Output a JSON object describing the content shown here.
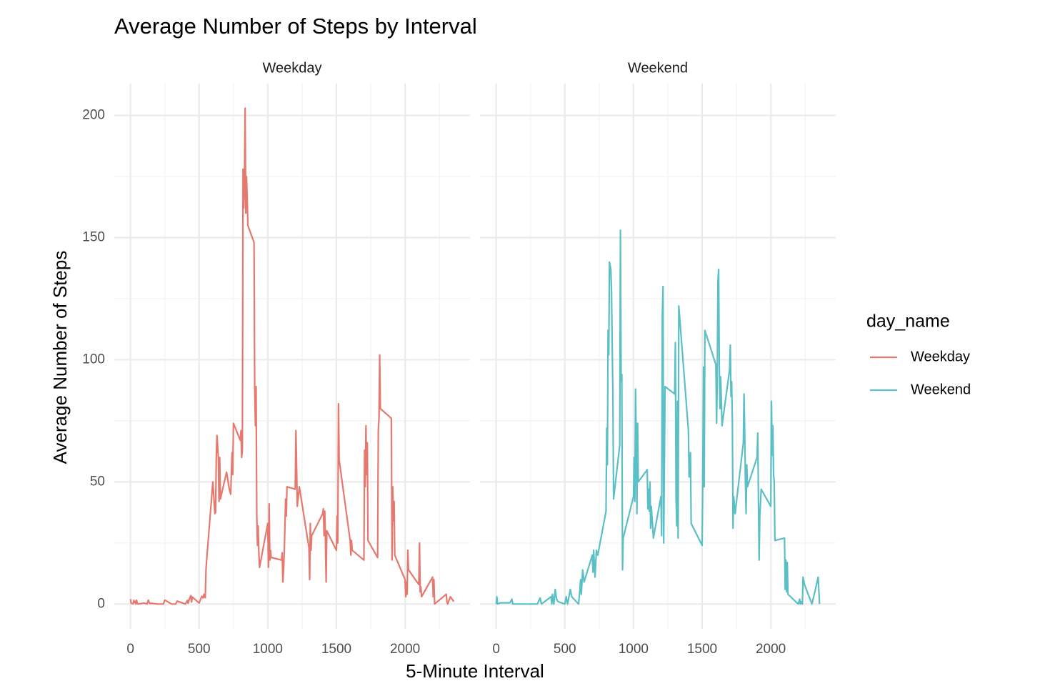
{
  "chart_data": {
    "type": "line",
    "title": "Average Number of Steps by Interval",
    "x_label": "5-Minute Interval",
    "y_label": "Average Number of Steps",
    "legend_title": "day_name",
    "xlim": [
      -117.75,
      2472.75
    ],
    "ylim": [
      -10.15,
      213.15
    ],
    "xticks": [
      0,
      500,
      1000,
      1500,
      2000
    ],
    "yticks": [
      0,
      50,
      100,
      150,
      200
    ],
    "grid": true,
    "series": [
      {
        "name": "Weekday",
        "color": "#e6786e",
        "x": [
          0,
          5,
          10,
          15,
          20,
          25,
          30,
          35,
          40,
          45,
          50,
          55,
          100,
          110,
          120,
          130,
          140,
          150,
          200,
          230,
          240,
          250,
          300,
          330,
          340,
          400,
          415,
          420,
          430,
          440,
          445,
          450,
          500,
          520,
          530,
          535,
          545,
          550,
          555,
          600,
          615,
          620,
          625,
          630,
          640,
          645,
          650,
          655,
          700,
          720,
          730,
          740,
          745,
          750,
          800,
          805,
          810,
          815,
          820,
          825,
          830,
          835,
          840,
          845,
          850,
          855,
          900,
          905,
          910,
          915,
          920,
          925,
          930,
          935,
          940,
          1000,
          1005,
          1010,
          1015,
          1020,
          1025,
          1030,
          1100,
          1105,
          1110,
          1115,
          1120,
          1130,
          1135,
          1140,
          1200,
          1205,
          1210,
          1215,
          1230,
          1300,
          1305,
          1310,
          1315,
          1320,
          1400,
          1405,
          1410,
          1415,
          1420,
          1425,
          1430,
          1500,
          1505,
          1510,
          1515,
          1520,
          1600,
          1605,
          1610,
          1615,
          1700,
          1705,
          1710,
          1715,
          1720,
          1725,
          1730,
          1800,
          1805,
          1810,
          1815,
          1820,
          1900,
          1905,
          1910,
          1915,
          1920,
          1925,
          2000,
          2005,
          2010,
          2015,
          2020,
          2025,
          2100,
          2105,
          2110,
          2115,
          2120,
          2200,
          2205,
          2210,
          2215,
          2300,
          2305,
          2310,
          2330,
          2355
        ],
        "values": [
          2.0,
          0.4,
          0.2,
          0.2,
          0.1,
          1.5,
          0.6,
          1.1,
          0,
          1.6,
          0.3,
          0,
          0.4,
          0.2,
          0,
          1.6,
          0.2,
          0.3,
          0,
          0,
          0,
          1.6,
          0,
          0,
          1.2,
          0,
          1.5,
          0.3,
          2.2,
          3.5,
          0.8,
          2.9,
          0.4,
          3.2,
          2.5,
          4.0,
          2.6,
          14,
          18,
          50,
          37,
          37.5,
          60,
          69,
          60,
          42,
          60,
          43,
          54,
          47,
          45,
          62,
          53,
          74,
          67,
          71,
          60,
          63,
          178,
          162,
          170,
          203,
          160,
          175,
          167,
          155,
          148,
          88,
          73,
          89,
          36,
          24,
          32,
          21,
          15,
          33,
          15,
          41,
          18,
          22,
          19,
          19,
          18,
          21,
          9,
          14,
          21,
          43,
          36,
          48,
          47,
          71,
          56,
          40,
          48,
          23,
          10,
          33,
          22,
          28,
          37,
          39,
          28,
          38,
          26,
          9,
          30,
          22,
          36,
          25,
          82,
          59,
          26,
          20,
          26,
          22,
          18,
          63,
          48,
          73,
          53,
          66,
          26,
          19,
          71,
          76,
          102,
          80,
          76,
          18,
          48,
          34,
          42,
          20,
          10,
          3,
          9,
          4,
          22,
          14,
          8,
          25,
          5,
          7,
          3,
          11,
          3,
          10,
          0,
          4,
          1,
          0,
          3,
          1
        ]
      },
      {
        "name": "Weekend",
        "color": "#5bbfc6",
        "x": [
          0,
          5,
          10,
          30,
          100,
          115,
          120,
          200,
          300,
          320,
          330,
          400,
          405,
          410,
          420,
          430,
          440,
          450,
          500,
          510,
          520,
          540,
          550,
          600,
          610,
          615,
          620,
          630,
          640,
          700,
          705,
          710,
          720,
          730,
          740,
          800,
          805,
          810,
          815,
          820,
          825,
          835,
          840,
          845,
          850,
          855,
          900,
          905,
          910,
          915,
          920,
          925,
          1000,
          1005,
          1010,
          1015,
          1020,
          1025,
          1030,
          1035,
          1100,
          1105,
          1110,
          1115,
          1120,
          1125,
          1130,
          1145,
          1200,
          1205,
          1210,
          1215,
          1220,
          1230,
          1300,
          1305,
          1310,
          1315,
          1320,
          1325,
          1330,
          1400,
          1405,
          1410,
          1415,
          1420,
          1500,
          1505,
          1510,
          1515,
          1520,
          1600,
          1605,
          1610,
          1615,
          1620,
          1625,
          1630,
          1635,
          1645,
          1700,
          1705,
          1710,
          1715,
          1720,
          1725,
          1730,
          1740,
          1800,
          1805,
          1810,
          1815,
          1820,
          1825,
          1830,
          1900,
          1905,
          1910,
          1915,
          1920,
          1930,
          2000,
          2005,
          2010,
          2015,
          2020,
          2025,
          2030,
          2100,
          2105,
          2110,
          2115,
          2120,
          2125,
          2200,
          2210,
          2215,
          2220,
          2230,
          2235,
          2245,
          2300,
          2345,
          2355
        ],
        "values": [
          0,
          3,
          0,
          0.5,
          0.5,
          2,
          0,
          0,
          0,
          2.5,
          0,
          3,
          0,
          4,
          0,
          6,
          2,
          1,
          0,
          3,
          0,
          6,
          3,
          0,
          6,
          10,
          4,
          14,
          9,
          20,
          13,
          22,
          11,
          22,
          20,
          38,
          72,
          57,
          112,
          102,
          140,
          137,
          128,
          106,
          86,
          43,
          65,
          153,
          91,
          94,
          14,
          27,
          44,
          60,
          42,
          88,
          68,
          37,
          74,
          50,
          55,
          39,
          47,
          38,
          50,
          31,
          40,
          27,
          44,
          28,
          118,
          130,
          25,
          89,
          86,
          107,
          44,
          32,
          83,
          27,
          122,
          71,
          52,
          56,
          62,
          33,
          24,
          54,
          97,
          48,
          112,
          98,
          74,
          91,
          132,
          137,
          97,
          80,
          93,
          73,
          96,
          106,
          85,
          91,
          75,
          31,
          44,
          37,
          66,
          86,
          70,
          51,
          37,
          57,
          48,
          60,
          70,
          43,
          18,
          36,
          47,
          40,
          83,
          61,
          73,
          53,
          50,
          26,
          27,
          6,
          18,
          5,
          17,
          4,
          0,
          2,
          0,
          1,
          0,
          11,
          8,
          0,
          11,
          0
        ]
      }
    ]
  }
}
